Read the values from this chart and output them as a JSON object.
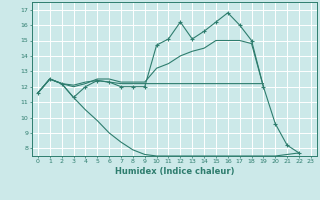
{
  "xlabel": "Humidex (Indice chaleur)",
  "background_color": "#cce9e9",
  "grid_color": "#ffffff",
  "line_color": "#2e7d6e",
  "xlim": [
    -0.5,
    23.5
  ],
  "ylim": [
    7.5,
    17.5
  ],
  "xticks": [
    0,
    1,
    2,
    3,
    4,
    5,
    6,
    7,
    8,
    9,
    10,
    11,
    12,
    13,
    14,
    15,
    16,
    17,
    18,
    19,
    20,
    21,
    22,
    23
  ],
  "yticks": [
    8,
    9,
    10,
    11,
    12,
    13,
    14,
    15,
    16,
    17
  ],
  "series": [
    {
      "x": [
        0,
        1,
        2,
        3,
        4,
        5,
        6,
        7,
        8,
        9,
        10,
        11,
        12,
        13,
        14,
        15,
        16,
        17,
        18,
        19,
        20,
        21,
        22
      ],
      "y": [
        11.6,
        12.5,
        12.2,
        11.3,
        12.0,
        12.4,
        12.3,
        12.0,
        12.0,
        12.0,
        14.7,
        15.1,
        16.2,
        15.1,
        15.6,
        16.2,
        16.8,
        16.0,
        15.0,
        12.0,
        9.6,
        8.2,
        7.7
      ],
      "marker": true
    },
    {
      "x": [
        0,
        1,
        2,
        3,
        4,
        5,
        6,
        7,
        8,
        9,
        10,
        11,
        12,
        13,
        14,
        15,
        16,
        17,
        18,
        19
      ],
      "y": [
        11.6,
        12.5,
        12.2,
        12.0,
        12.2,
        12.5,
        12.5,
        12.3,
        12.3,
        12.3,
        13.2,
        13.5,
        14.0,
        14.3,
        14.5,
        15.0,
        15.0,
        15.0,
        14.8,
        12.0
      ],
      "marker": false
    },
    {
      "x": [
        0,
        1,
        2,
        3,
        4,
        5,
        6,
        7,
        8,
        9,
        10,
        11,
        12,
        13,
        14,
        15,
        16,
        17,
        18,
        19
      ],
      "y": [
        11.6,
        12.5,
        12.2,
        12.1,
        12.3,
        12.4,
        12.3,
        12.2,
        12.2,
        12.2,
        12.2,
        12.2,
        12.2,
        12.2,
        12.2,
        12.2,
        12.2,
        12.2,
        12.2,
        12.2
      ],
      "marker": false
    },
    {
      "x": [
        0,
        1,
        2,
        3,
        4,
        5,
        6,
        7,
        8,
        9,
        10,
        11,
        12,
        13,
        14,
        15,
        16,
        17,
        18,
        19,
        20,
        21,
        22
      ],
      "y": [
        11.6,
        12.5,
        12.2,
        11.3,
        10.5,
        9.8,
        9.0,
        8.4,
        7.9,
        7.6,
        7.5,
        7.5,
        7.5,
        7.5,
        7.5,
        7.5,
        7.5,
        7.5,
        7.5,
        7.5,
        7.5,
        7.6,
        7.7
      ],
      "marker": false
    }
  ]
}
